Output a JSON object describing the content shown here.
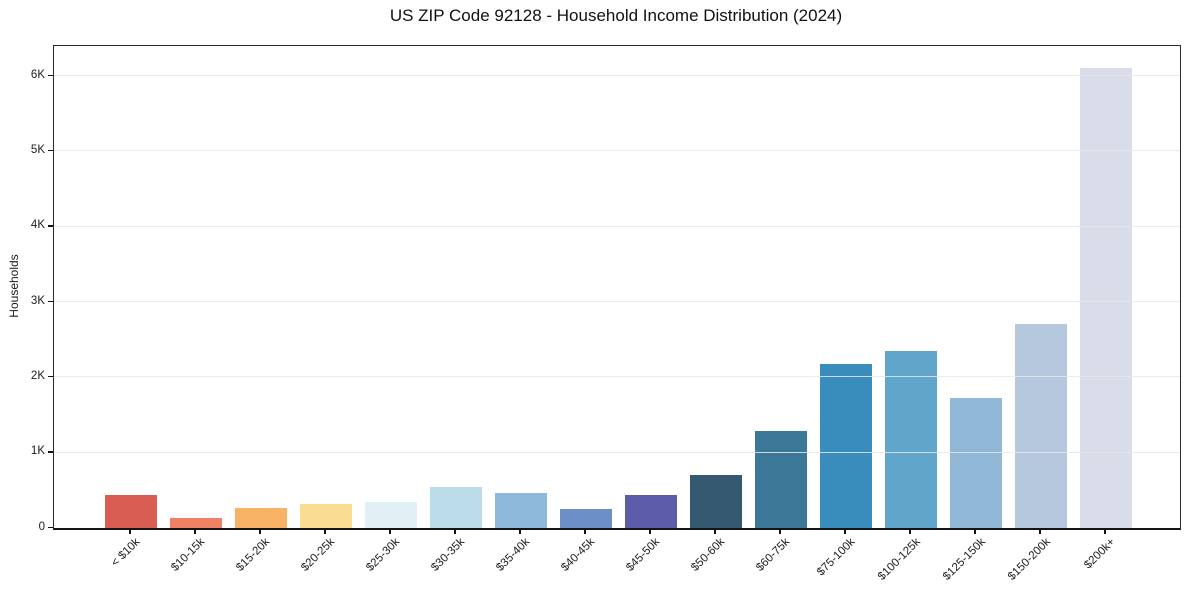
{
  "chart_data": {
    "type": "bar",
    "title": "US ZIP Code 92128 - Household Income Distribution (2024)",
    "xlabel": "",
    "ylabel": "Households",
    "categories": [
      "< $10k",
      "$10-15k",
      "$15-20k",
      "$20-25k",
      "$25-30k",
      "$30-35k",
      "$35-40k",
      "$40-45k",
      "$45-50k",
      "$50-60k",
      "$60-75k",
      "$75-100k",
      "$100-125k",
      "$125-150k",
      "$150-200k",
      "$200k+"
    ],
    "values": [
      440,
      130,
      265,
      320,
      350,
      540,
      460,
      250,
      440,
      710,
      1290,
      2180,
      2350,
      1730,
      2710,
      6110
    ],
    "bar_colors": [
      "#d95d52",
      "#ef8165",
      "#f8b266",
      "#fbdd91",
      "#e2eff5",
      "#bcdcea",
      "#8fb9da",
      "#6d8fc7",
      "#5c5caa",
      "#35596e",
      "#3b7897",
      "#388dbd",
      "#60a5ca",
      "#90b7d5",
      "#b6c8de",
      "#d9dce9"
    ],
    "ylim": [
      0,
      6400
    ],
    "yticks": [
      {
        "value": 0,
        "label": "0"
      },
      {
        "value": 1000,
        "label": "1K"
      },
      {
        "value": 2000,
        "label": "2K"
      },
      {
        "value": 3000,
        "label": "3K"
      },
      {
        "value": 4000,
        "label": "4K"
      },
      {
        "value": 5000,
        "label": "5K"
      },
      {
        "value": 6000,
        "label": "6K"
      }
    ],
    "grid": "horizontal-light",
    "legend": "none",
    "colors": {
      "axis": "#1c1c1c",
      "grid": "#e7e7e7",
      "background": "#ffffff",
      "text": "#1c1c1c"
    }
  }
}
